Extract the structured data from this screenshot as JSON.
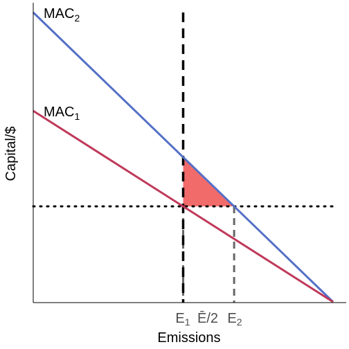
{
  "chart_data": {
    "type": "line",
    "xlabel": "Emissions",
    "ylabel": "Capital/$",
    "xlim": [
      0,
      1
    ],
    "ylim": [
      0,
      1
    ],
    "series": [
      {
        "name": "MAC",
        "subscript": "2",
        "color": "#5470c6",
        "x": [
          0,
          1
        ],
        "y": [
          1,
          0
        ]
      },
      {
        "name": "MAC",
        "subscript": "1",
        "color": "#c0395a",
        "x": [
          0,
          1
        ],
        "y": [
          0.66,
          0
        ]
      }
    ],
    "price_line": {
      "y": 0.33,
      "style": "dotted",
      "color": "#000000"
    },
    "cap_line": {
      "x": 0.5,
      "style": "dashed",
      "color": "#000000"
    },
    "emission_lines": [
      {
        "x": 0.5,
        "style": "dashed",
        "color": "#666666"
      },
      {
        "x": 0.67,
        "style": "dashed",
        "color": "#666666"
      }
    ],
    "deadweight_fill": "#f26b6b",
    "x_ticks": [
      {
        "x": 0.5,
        "label": "E",
        "sub": "1"
      },
      {
        "x": 0.585,
        "label": "Ē/2",
        "sub": ""
      },
      {
        "x": 0.67,
        "label": "E",
        "sub": "2"
      }
    ]
  }
}
